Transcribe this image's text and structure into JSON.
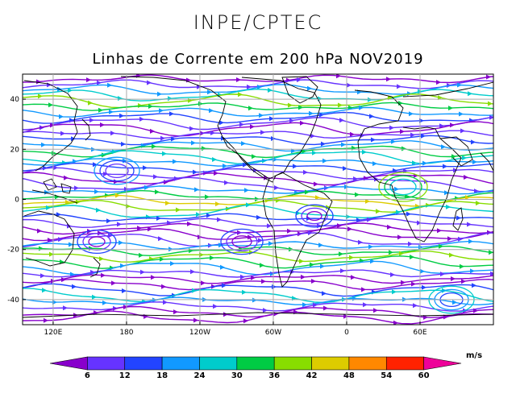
{
  "header": {
    "org": "INPE/CPTEC",
    "title": "Linhas de Corrente em 200 hPa NOV2019"
  },
  "map": {
    "lat_ticks": [
      "40",
      "20",
      "0",
      "-20",
      "-40"
    ],
    "lat_values": [
      40,
      20,
      0,
      -20,
      -40
    ],
    "lon_ticks": [
      "120E",
      "180",
      "120W",
      "60W",
      "0",
      "60E"
    ],
    "lon_values": [
      120,
      180,
      240,
      300,
      360,
      420
    ],
    "lon_range": [
      95,
      480
    ],
    "lat_range": [
      -50,
      50
    ],
    "grid": true
  },
  "colorbar": {
    "unit": "m/s",
    "labels": [
      "6",
      "12",
      "18",
      "24",
      "30",
      "36",
      "42",
      "48",
      "54",
      "60"
    ],
    "colors": [
      "#8800cc",
      "#6633ff",
      "#2244ff",
      "#1199ff",
      "#00cccc",
      "#00cc44",
      "#88dd00",
      "#ddcc00",
      "#ff8800",
      "#ff2200",
      "#ee0099"
    ]
  }
}
